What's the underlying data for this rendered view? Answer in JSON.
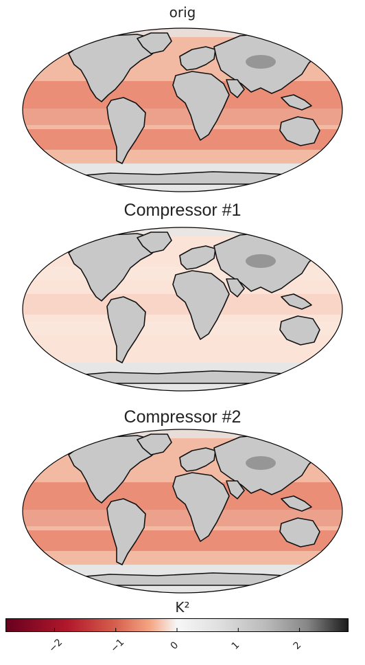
{
  "panels": [
    {
      "title": "orig"
    },
    {
      "title": "Compressor #1"
    },
    {
      "title": "Compressor  #2"
    }
  ],
  "colorbar": {
    "label": "K²",
    "ticks": [
      "−2",
      "−1",
      "0",
      "1",
      "2"
    ],
    "tick_values": [
      -2,
      -1,
      0,
      1,
      2
    ],
    "range": [
      -2.8,
      2.8
    ],
    "colors": {
      "neg_end": "#67001f",
      "mid": "#f7f7f7",
      "pos_end": "#1a1a1a"
    }
  },
  "map_colors": {
    "land": "#c8c8c8",
    "land_dark": "#8a8a8a",
    "coast": "#111111",
    "ocean_strong": "#e8806a",
    "ocean_mid": "#f2b9a3",
    "ocean_light": "#fbe3d8",
    "ice": "#e6e6e6"
  }
}
